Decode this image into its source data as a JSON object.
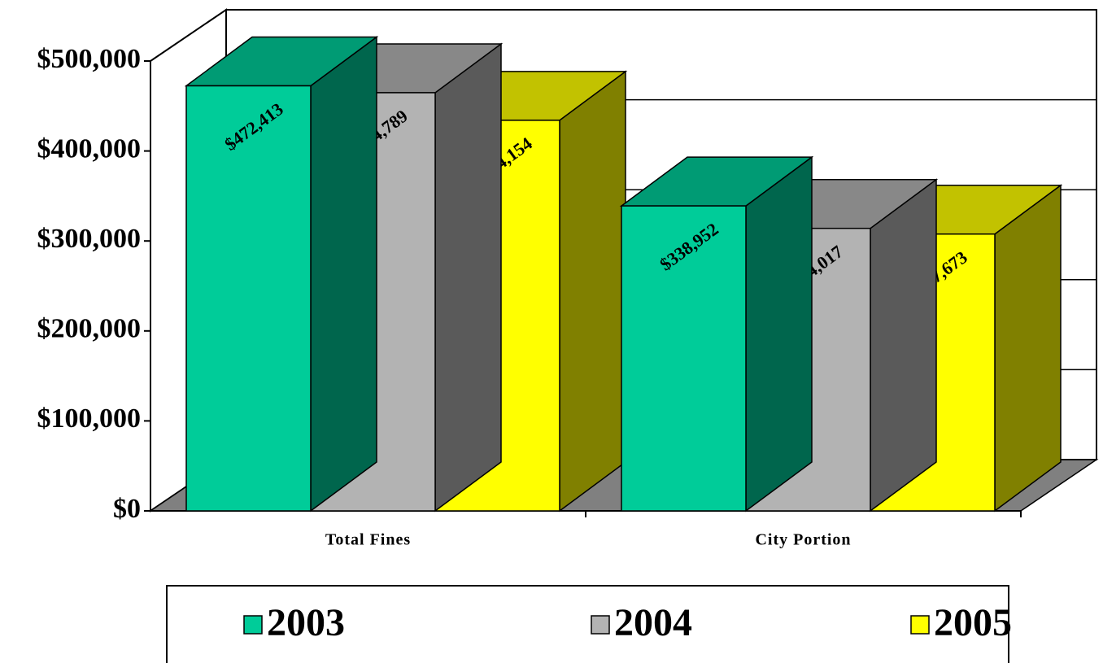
{
  "chart_data": {
    "type": "bar3d",
    "categories": [
      "Total Fines",
      "City Portion"
    ],
    "series": [
      {
        "name": "2003",
        "color": "#00cc99",
        "values": [
          472413,
          338952
        ],
        "value_labels": [
          "$472,413",
          "$338,952"
        ]
      },
      {
        "name": "2004",
        "color": "#b3b3b3",
        "values": [
          464789,
          314017
        ],
        "value_labels": [
          "$464,789",
          "$314,017"
        ]
      },
      {
        "name": "2005",
        "color": "#ffff00",
        "values": [
          434154,
          307673
        ],
        "value_labels": [
          "$434,154",
          "$307,673"
        ]
      }
    ],
    "ylim": [
      0,
      500000
    ],
    "yticks": [
      {
        "value": 0,
        "label": "$0"
      },
      {
        "value": 100000,
        "label": "$100,000"
      },
      {
        "value": 200000,
        "label": "$200,000"
      },
      {
        "value": 300000,
        "label": "$300,000"
      },
      {
        "value": 400000,
        "label": "$400,000"
      },
      {
        "value": 500000,
        "label": "$500,000"
      }
    ],
    "grid": true,
    "legend": "bottom"
  }
}
